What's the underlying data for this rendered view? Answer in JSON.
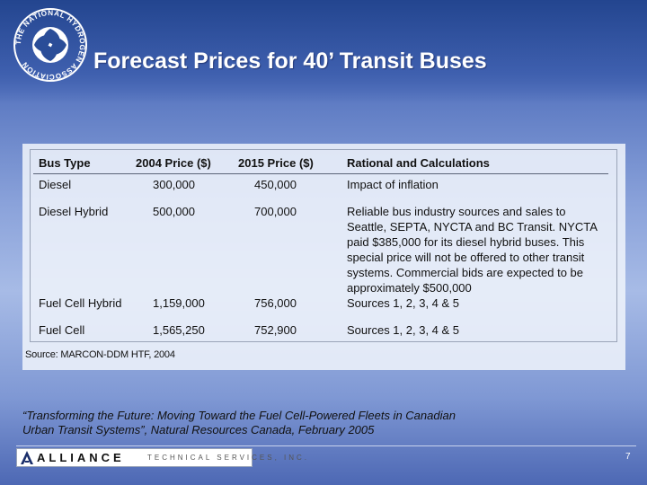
{
  "slide": {
    "title": "Forecast Prices for 40’ Transit Buses",
    "logo": {
      "icon": "hydrogen-association-logo-icon",
      "text": "THE NATIONAL HYDROGEN ASSOCIATION"
    },
    "table": {
      "headers": [
        "Bus Type",
        "2004 Price ($)",
        "2015 Price ($)",
        "Rational and Calculations"
      ],
      "rows": [
        {
          "bus_type": "Diesel",
          "price_2004": "300,000",
          "price_2015": "450,000",
          "rationale": "Impact of inflation"
        },
        {
          "bus_type": "Diesel Hybrid",
          "price_2004": "500,000",
          "price_2015": "700,000",
          "rationale": "Reliable bus industry sources and sales to Seattle, SEPTA, NYCTA and BC Transit. NYCTA paid $385,000 for its diesel hybrid buses.  This special price will not be offered to other transit systems. Commercial bids are expected to be approximately $500,000"
        },
        {
          "bus_type": "Fuel Cell Hybrid",
          "price_2004": "1,159,000",
          "price_2015": "756,000",
          "rationale": "Sources 1, 2, 3, 4 & 5"
        },
        {
          "bus_type": "Fuel Cell",
          "price_2004": "1,565,250",
          "price_2015": "752,900",
          "rationale": "Sources 1, 2, 3, 4 & 5"
        }
      ],
      "source": "Source: MARCON-DDM HTF, 2004"
    },
    "quote": "“Transforming the Future: Moving Toward the Fuel Cell-Powered Fleets in Canadian Urban Transit Systems”, Natural Resources Canada, February 2005",
    "footer": {
      "brand_icon": "alliance-triangle-icon",
      "brand_name": "ALLIANCE",
      "brand_sub": "TECHNICAL SERVICES, INC.",
      "page_number": "7"
    }
  }
}
